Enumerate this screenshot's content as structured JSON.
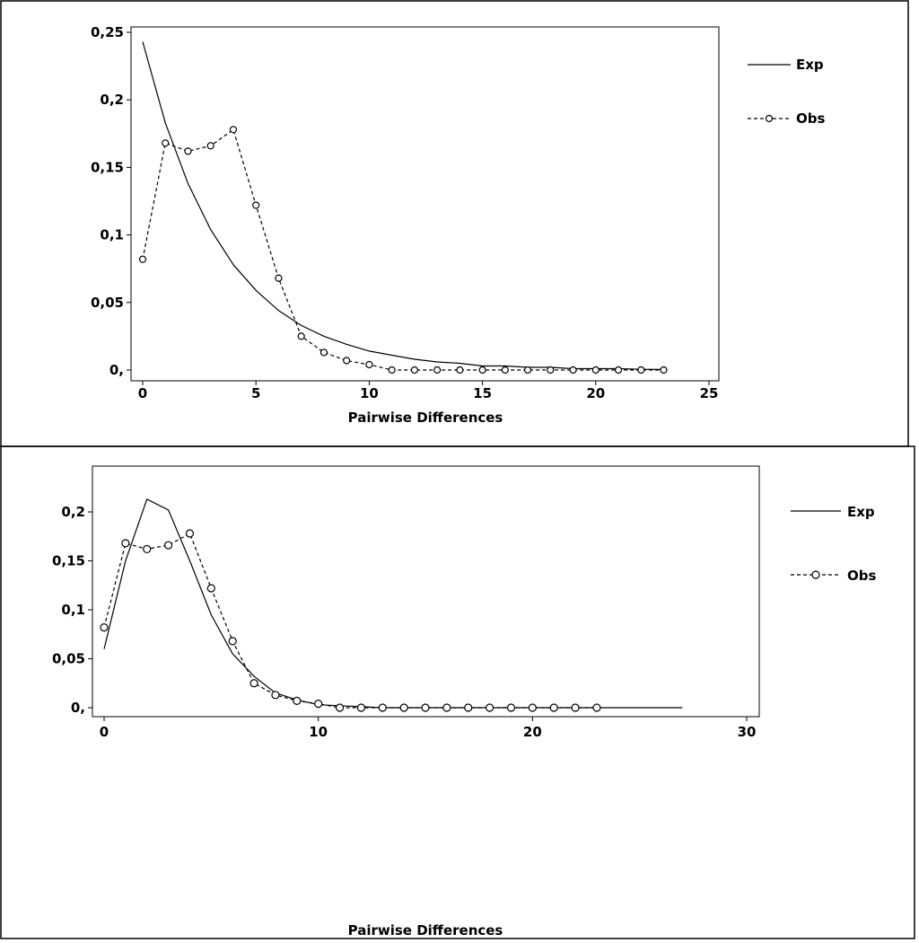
{
  "chart_data": [
    {
      "type": "line",
      "xlabel": "Pairwise Differences",
      "ylabel": "",
      "xlim": [
        0,
        25
      ],
      "ylim": [
        0,
        0.25
      ],
      "x_ticks": [
        0,
        5,
        10,
        15,
        20,
        25
      ],
      "x_tick_labels": [
        "0",
        "5",
        "10",
        "15",
        "20",
        "25"
      ],
      "y_ticks": [
        0,
        0.05,
        0.1,
        0.15,
        0.2,
        0.25
      ],
      "y_tick_labels": [
        "0,",
        "0,05",
        "0,1",
        "0,15",
        "0,2",
        "0,25"
      ],
      "legend_position": "right",
      "series": [
        {
          "name": "Exp",
          "style": "solid",
          "x": [
            0,
            1,
            2,
            3,
            4,
            5,
            6,
            7,
            8,
            9,
            10,
            11,
            12,
            13,
            14,
            15,
            16,
            17,
            18,
            19,
            20,
            21,
            22,
            23
          ],
          "values": [
            0.243,
            0.183,
            0.138,
            0.104,
            0.078,
            0.059,
            0.044,
            0.033,
            0.025,
            0.019,
            0.014,
            0.011,
            0.008,
            0.006,
            0.005,
            0.003,
            0.003,
            0.002,
            0.002,
            0.001,
            0.001,
            0.001,
            0.0005,
            0.0004
          ]
        },
        {
          "name": "Obs",
          "style": "dashed-circles",
          "x": [
            0,
            1,
            2,
            3,
            4,
            5,
            6,
            7,
            8,
            9,
            10,
            11,
            12,
            13,
            14,
            15,
            16,
            17,
            18,
            19,
            20,
            21,
            22,
            23
          ],
          "values": [
            0.082,
            0.168,
            0.162,
            0.166,
            0.178,
            0.122,
            0.068,
            0.025,
            0.013,
            0.007,
            0.004,
            0.0,
            0.0,
            0.0,
            0.0,
            0.0,
            0.0,
            0.0,
            0.0,
            0.0,
            0.0,
            0.0,
            0.0,
            0.0
          ]
        }
      ]
    },
    {
      "type": "line",
      "xlabel": "Pairwise Differences",
      "ylabel": "",
      "xlim": [
        0,
        30
      ],
      "ylim": [
        0,
        0.22
      ],
      "x_ticks": [
        0,
        10,
        20,
        30
      ],
      "x_tick_labels": [
        "0",
        "10",
        "20",
        "30"
      ],
      "y_ticks": [
        0,
        0.05,
        0.1,
        0.15,
        0.2
      ],
      "y_tick_labels": [
        "0,",
        "0,05",
        "0,1",
        "0,15",
        "0,2"
      ],
      "legend_position": "right",
      "series": [
        {
          "name": "Exp",
          "style": "solid",
          "x": [
            0,
            1,
            2,
            3,
            4,
            5,
            6,
            7,
            8,
            9,
            10,
            11,
            12,
            13,
            14,
            15,
            16,
            17,
            18,
            19,
            20,
            21,
            22,
            23,
            24,
            25,
            26,
            27
          ],
          "values": [
            0.06,
            0.15,
            0.213,
            0.202,
            0.15,
            0.095,
            0.055,
            0.032,
            0.015,
            0.008,
            0.003,
            0.002,
            0.001,
            0.0,
            0.0,
            0.0,
            0.0,
            0.0,
            0.0,
            0.0,
            0.0,
            0.0,
            0.0,
            0.0,
            0.0,
            0.0,
            0.0,
            0.0
          ]
        },
        {
          "name": "Obs",
          "style": "dashed-circles",
          "x": [
            0,
            1,
            2,
            3,
            4,
            5,
            6,
            7,
            8,
            9,
            10,
            11,
            12,
            13,
            14,
            15,
            16,
            17,
            18,
            19,
            20,
            21,
            22,
            23
          ],
          "values": [
            0.082,
            0.168,
            0.162,
            0.166,
            0.178,
            0.122,
            0.068,
            0.025,
            0.013,
            0.007,
            0.004,
            0.0,
            0.0,
            0.0,
            0.0,
            0.0,
            0.0,
            0.0,
            0.0,
            0.0,
            0.0,
            0.0,
            0.0,
            0.0
          ]
        }
      ]
    }
  ]
}
